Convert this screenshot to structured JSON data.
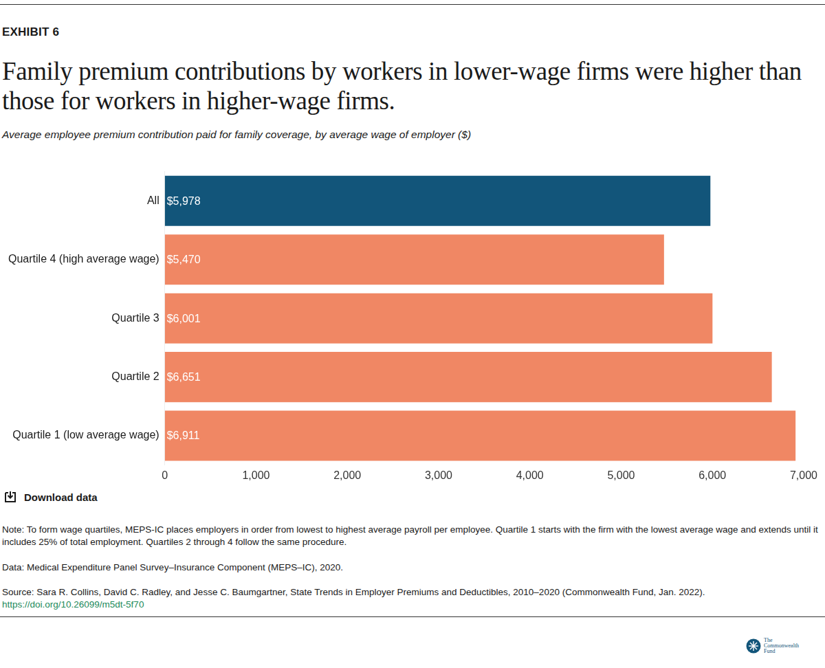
{
  "exhibit": "EXHIBIT 6",
  "chart_data": {
    "type": "bar",
    "orientation": "horizontal",
    "title": "Family premium contributions by workers in lower-wage firms were higher than those for workers in higher-wage firms.",
    "subtitle": "Average employee premium contribution paid for family coverage, by average wage of employer ($)",
    "categories": [
      "All",
      "Quartile 4 (high average wage)",
      "Quartile 3",
      "Quartile 2",
      "Quartile 1 (low average wage)"
    ],
    "values": [
      5978,
      5470,
      6001,
      6651,
      6911
    ],
    "value_labels": [
      "$5,978",
      "$5,470",
      "$6,001",
      "$6,651",
      "$6,911"
    ],
    "colors": [
      "#12557a",
      "#f08764",
      "#f08764",
      "#f08764",
      "#f08764"
    ],
    "data_labels": true,
    "xlim": [
      0,
      7000
    ],
    "xticks": [
      0,
      {
        "value": 1000,
        "label": "1,000"
      },
      {
        "value": 2000,
        "label": "2,000"
      },
      {
        "value": 3000,
        "label": "3,000"
      },
      {
        "value": 4000,
        "label": "4,000"
      },
      {
        "value": 5000,
        "label": "5,000"
      },
      {
        "value": 6000,
        "label": "6,000"
      },
      {
        "value": 7000,
        "label": "7,000"
      }
    ],
    "grid": false
  },
  "download": "Download data",
  "note": "Note: To form wage quartiles, MEPS-IC places employers in order from lowest to highest average payroll per employee. Quartile 1 starts with the firm with the lowest average wage and extends until it includes 25% of total employment. Quartiles 2 through 4 follow the same procedure.",
  "data_source": "Data: Medical Expenditure Panel Survey–Insurance Component (MEPS–IC), 2020.",
  "source": "Source: Sara R. Collins, David C. Radley, and Jesse C. Baumgartner, State Trends in Employer Premiums and Deductibles, 2010–2020 (Commonwealth Fund, Jan. 2022).",
  "link": "https://doi.org/10.26099/m5dt-5f70",
  "logo": [
    "The",
    "Commonwealth",
    "Fund"
  ]
}
